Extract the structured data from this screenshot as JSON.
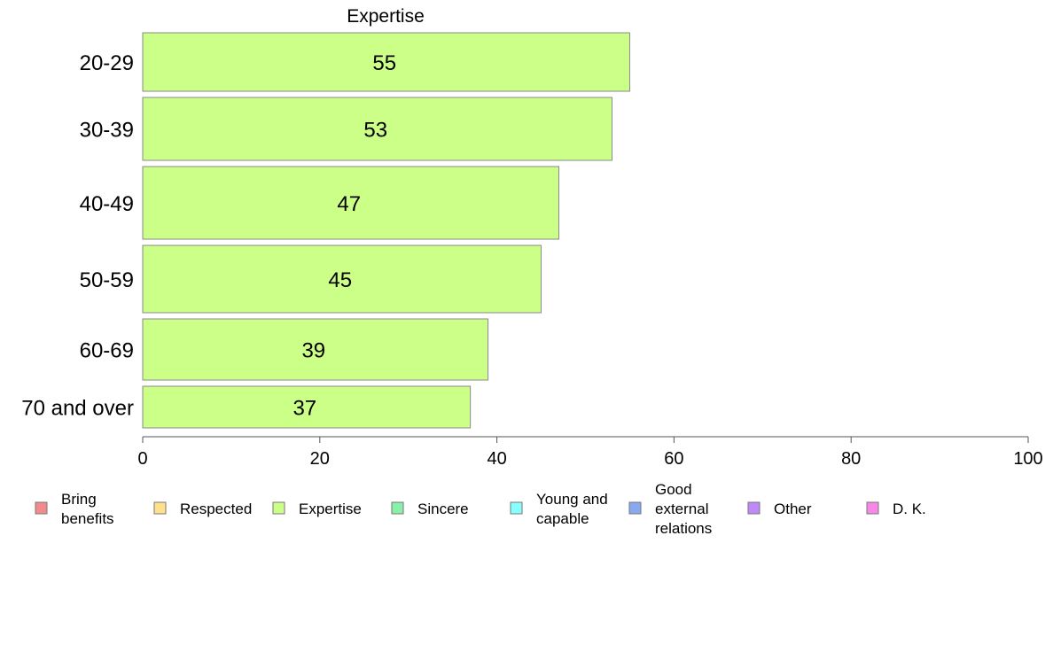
{
  "chart_data": {
    "type": "bar",
    "orientation": "horizontal",
    "title": "Expertise",
    "categories": [
      "20-29",
      "30-39",
      "40-49",
      "50-59",
      "60-69",
      "70 and over"
    ],
    "series": [
      {
        "name": "Expertise",
        "values": [
          55,
          53,
          47,
          45,
          39,
          37
        ],
        "color": "#ccff88"
      }
    ],
    "xlim": [
      0,
      100
    ],
    "xticks": [
      0,
      20,
      40,
      60,
      80,
      100
    ],
    "grid": false,
    "legend_position": "bottom",
    "legend": [
      {
        "label": "Bring benefits",
        "lines": [
          "Bring",
          "benefits"
        ],
        "color": "#f28c8c"
      },
      {
        "label": "Respected",
        "lines": [
          "Respected"
        ],
        "color": "#ffe08c"
      },
      {
        "label": "Expertise",
        "lines": [
          "Expertise"
        ],
        "color": "#ccff88"
      },
      {
        "label": "Sincere",
        "lines": [
          "Sincere"
        ],
        "color": "#88f0a8"
      },
      {
        "label": "Young and capable",
        "lines": [
          "Young and",
          "capable"
        ],
        "color": "#88ffff"
      },
      {
        "label": "Good external relations",
        "lines": [
          "Good",
          "external",
          "relations"
        ],
        "color": "#88a8f0"
      },
      {
        "label": "Other",
        "lines": [
          "Other"
        ],
        "color": "#c088f8"
      },
      {
        "label": "D. K.",
        "lines": [
          "D. K."
        ],
        "color": "#f888e8"
      }
    ]
  }
}
